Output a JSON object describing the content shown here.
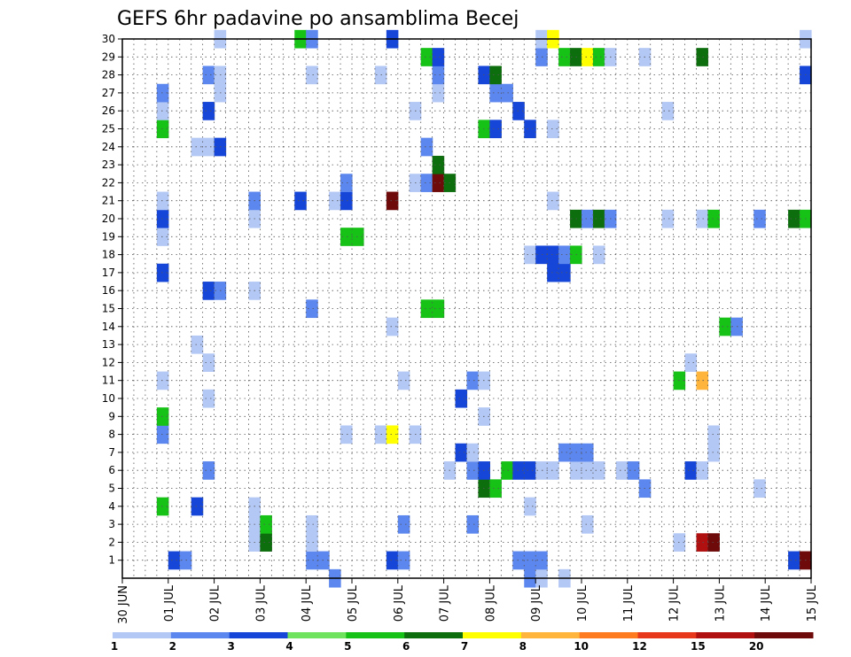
{
  "chart_data": {
    "type": "heatmap",
    "title": "GEFS 6hr padavine po ansamblima Becej",
    "xlabel": "",
    "ylabel": "",
    "x_tick_labels": [
      "30 JUN",
      "01 JUL",
      "02 JUL",
      "03 JUL",
      "04 JUL",
      "05 JUL",
      "06 JUL",
      "07 JUL",
      "08 JUL",
      "09 JUL",
      "10 JUL",
      "11 JUL",
      "12 JUL",
      "13 JUL",
      "14 JUL",
      "15 JUL"
    ],
    "x_range_days": [
      0,
      15
    ],
    "y_tick_labels": [
      "1",
      "2",
      "3",
      "4",
      "5",
      "6",
      "7",
      "8",
      "9",
      "10",
      "11",
      "12",
      "13",
      "14",
      "15",
      "16",
      "17",
      "18",
      "19",
      "20",
      "21",
      "22",
      "23",
      "24",
      "25",
      "26",
      "27",
      "28",
      "29",
      "30"
    ],
    "y_range": [
      0,
      30
    ],
    "grid": true,
    "colorbar": {
      "placement": "bottom",
      "labels": [
        "1",
        "2",
        "3",
        "4",
        "5",
        "6",
        "7",
        "8",
        "10",
        "12",
        "15",
        "20"
      ],
      "colors": [
        "#b4c8f6",
        "#5c87ee",
        "#1546d8",
        "#6fe35e",
        "#17c217",
        "#0d6e0d",
        "#ffff00",
        "#ffb43c",
        "#ff7b1f",
        "#e8381c",
        "#b01010",
        "#6e0a0a"
      ]
    },
    "cells": [
      [
        0,
        4.5,
        2
      ],
      [
        0,
        8.75,
        2
      ],
      [
        0,
        9.0,
        1
      ],
      [
        0,
        9.5,
        1
      ],
      [
        1,
        1.0,
        3
      ],
      [
        1,
        1.25,
        2
      ],
      [
        1,
        4.0,
        2
      ],
      [
        1,
        4.25,
        2
      ],
      [
        1,
        5.75,
        3
      ],
      [
        1,
        6.0,
        2
      ],
      [
        1,
        8.5,
        2
      ],
      [
        1,
        8.75,
        2
      ],
      [
        1,
        9.0,
        2
      ],
      [
        1,
        14.5,
        3
      ],
      [
        1,
        14.75,
        12
      ],
      [
        2,
        2.75,
        1
      ],
      [
        2,
        3.0,
        6
      ],
      [
        2,
        4.0,
        1
      ],
      [
        2,
        12.0,
        1
      ],
      [
        2,
        12.5,
        11
      ],
      [
        2,
        12.75,
        12
      ],
      [
        3,
        2.75,
        1
      ],
      [
        3,
        3.0,
        5
      ],
      [
        3,
        4.0,
        1
      ],
      [
        3,
        6.0,
        2
      ],
      [
        3,
        7.5,
        2
      ],
      [
        3,
        10.0,
        1
      ],
      [
        4,
        0.75,
        5
      ],
      [
        4,
        1.5,
        3
      ],
      [
        4,
        2.75,
        1
      ],
      [
        4,
        8.75,
        1
      ],
      [
        5,
        7.75,
        6
      ],
      [
        5,
        8.0,
        5
      ],
      [
        5,
        11.25,
        2
      ],
      [
        5,
        13.75,
        1
      ],
      [
        6,
        1.75,
        2
      ],
      [
        6,
        7.0,
        1
      ],
      [
        6,
        7.5,
        2
      ],
      [
        6,
        7.75,
        3
      ],
      [
        6,
        8.25,
        5
      ],
      [
        6,
        8.5,
        3
      ],
      [
        6,
        8.75,
        3
      ],
      [
        6,
        9.0,
        1
      ],
      [
        6,
        9.25,
        1
      ],
      [
        6,
        9.75,
        1
      ],
      [
        6,
        10.0,
        1
      ],
      [
        6,
        10.25,
        1
      ],
      [
        6,
        10.75,
        1
      ],
      [
        6,
        11.0,
        2
      ],
      [
        6,
        12.25,
        3
      ],
      [
        6,
        12.5,
        1
      ],
      [
        7,
        7.25,
        3
      ],
      [
        7,
        7.5,
        1
      ],
      [
        7,
        9.5,
        2
      ],
      [
        7,
        9.75,
        2
      ],
      [
        7,
        10.0,
        2
      ],
      [
        7,
        12.75,
        1
      ],
      [
        8,
        0.75,
        2
      ],
      [
        8,
        4.75,
        1
      ],
      [
        8,
        5.5,
        1
      ],
      [
        8,
        5.75,
        7
      ],
      [
        8,
        6.25,
        1
      ],
      [
        8,
        12.75,
        1
      ],
      [
        9,
        0.75,
        5
      ],
      [
        9,
        7.75,
        1
      ],
      [
        10,
        1.75,
        1
      ],
      [
        10,
        7.25,
        3
      ],
      [
        11,
        0.75,
        1
      ],
      [
        11,
        6.0,
        1
      ],
      [
        11,
        7.5,
        2
      ],
      [
        11,
        7.75,
        1
      ],
      [
        11,
        12.0,
        5
      ],
      [
        11,
        12.5,
        8
      ],
      [
        12,
        1.75,
        1
      ],
      [
        12,
        12.25,
        1
      ],
      [
        13,
        1.5,
        1
      ],
      [
        14,
        5.75,
        1
      ],
      [
        14,
        13.0,
        5
      ],
      [
        14,
        13.25,
        2
      ],
      [
        15,
        4.0,
        2
      ],
      [
        15,
        6.5,
        5
      ],
      [
        15,
        6.75,
        5
      ],
      [
        16,
        1.75,
        3
      ],
      [
        16,
        2.0,
        2
      ],
      [
        16,
        2.75,
        1
      ],
      [
        17,
        0.75,
        3
      ],
      [
        17,
        9.25,
        3
      ],
      [
        17,
        9.5,
        3
      ],
      [
        18,
        8.75,
        1
      ],
      [
        18,
        9.0,
        3
      ],
      [
        18,
        9.25,
        3
      ],
      [
        18,
        9.5,
        2
      ],
      [
        18,
        9.75,
        5
      ],
      [
        18,
        10.25,
        1
      ],
      [
        19,
        0.75,
        1
      ],
      [
        19,
        4.75,
        5
      ],
      [
        19,
        5.0,
        5
      ],
      [
        20,
        0.75,
        3
      ],
      [
        20,
        2.75,
        1
      ],
      [
        20,
        9.75,
        6
      ],
      [
        20,
        10.0,
        2
      ],
      [
        20,
        10.25,
        6
      ],
      [
        20,
        10.5,
        2
      ],
      [
        20,
        11.75,
        1
      ],
      [
        20,
        12.5,
        1
      ],
      [
        20,
        12.75,
        5
      ],
      [
        20,
        13.75,
        2
      ],
      [
        20,
        14.5,
        6
      ],
      [
        20,
        14.75,
        5
      ],
      [
        21,
        0.75,
        1
      ],
      [
        21,
        2.75,
        2
      ],
      [
        21,
        3.75,
        3
      ],
      [
        21,
        4.5,
        1
      ],
      [
        21,
        4.75,
        3
      ],
      [
        21,
        5.75,
        12
      ],
      [
        21,
        9.25,
        1
      ],
      [
        22,
        4.75,
        2
      ],
      [
        22,
        6.25,
        1
      ],
      [
        22,
        6.5,
        2
      ],
      [
        22,
        6.75,
        12
      ],
      [
        22,
        7.0,
        6
      ],
      [
        23,
        6.75,
        6
      ],
      [
        24,
        1.5,
        1
      ],
      [
        24,
        1.75,
        1
      ],
      [
        24,
        2.0,
        3
      ],
      [
        24,
        6.5,
        2
      ],
      [
        25,
        0.75,
        5
      ],
      [
        25,
        7.75,
        5
      ],
      [
        25,
        8.0,
        3
      ],
      [
        25,
        8.75,
        3
      ],
      [
        25,
        9.25,
        1
      ],
      [
        26,
        0.75,
        1
      ],
      [
        26,
        1.75,
        3
      ],
      [
        26,
        6.25,
        1
      ],
      [
        26,
        8.5,
        3
      ],
      [
        26,
        11.75,
        1
      ],
      [
        27,
        0.75,
        2
      ],
      [
        27,
        2.0,
        1
      ],
      [
        27,
        6.75,
        1
      ],
      [
        27,
        8.0,
        2
      ],
      [
        27,
        8.25,
        2
      ],
      [
        28,
        1.75,
        2
      ],
      [
        28,
        2.0,
        1
      ],
      [
        28,
        4.0,
        1
      ],
      [
        28,
        5.5,
        1
      ],
      [
        28,
        6.75,
        2
      ],
      [
        28,
        7.75,
        3
      ],
      [
        28,
        8.0,
        6
      ],
      [
        28,
        14.75,
        3
      ],
      [
        29,
        6.5,
        5
      ],
      [
        29,
        6.75,
        3
      ],
      [
        29,
        9.0,
        2
      ],
      [
        29,
        9.5,
        5
      ],
      [
        29,
        9.75,
        6
      ],
      [
        29,
        10.0,
        7
      ],
      [
        29,
        10.25,
        5
      ],
      [
        29,
        10.5,
        1
      ],
      [
        29,
        11.25,
        1
      ],
      [
        29,
        12.5,
        6
      ],
      [
        30,
        2.0,
        1
      ],
      [
        30,
        3.75,
        5
      ],
      [
        30,
        4.0,
        2
      ],
      [
        30,
        5.75,
        3
      ],
      [
        30,
        9.0,
        1
      ],
      [
        30,
        9.25,
        7
      ],
      [
        30,
        14.75,
        1
      ]
    ]
  }
}
